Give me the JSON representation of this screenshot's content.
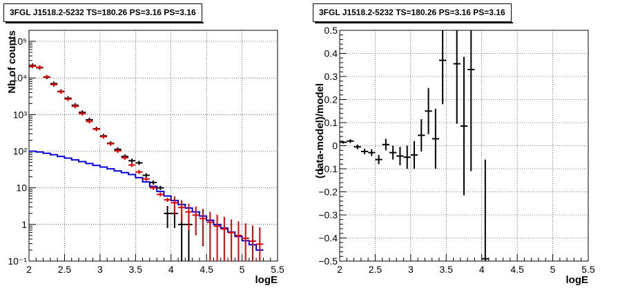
{
  "chart_data": [
    {
      "type": "scatter",
      "title": "3FGL J1518.2-5232 TS=180.26 PS=3.16 PS=3.16",
      "xlabel": "logE",
      "ylabel": "Nb of counts",
      "xlim": [
        2,
        5.5
      ],
      "ylim": [
        0.1,
        200000
      ],
      "yscale": "log",
      "grid": true,
      "xticks": [
        "2",
        "2.5",
        "3",
        "3.5",
        "4",
        "4.5",
        "5",
        "5.5"
      ],
      "yticks": [
        "10⁻¹",
        "1",
        "10",
        "10²",
        "10³",
        "10⁴",
        "10⁵"
      ],
      "colors": {
        "data": "#000000",
        "model_total": "#e00000",
        "model_source": "#0000dd"
      },
      "series": [
        {
          "role": "data",
          "points": [
            [
              2.05,
              22000,
              0
            ],
            [
              2.15,
              19000,
              0
            ],
            [
              2.25,
              10500,
              0
            ],
            [
              2.35,
              7000,
              0
            ],
            [
              2.45,
              4300,
              0
            ],
            [
              2.55,
              2800,
              0
            ],
            [
              2.65,
              1800,
              0
            ],
            [
              2.75,
              1150,
              0
            ],
            [
              2.85,
              720,
              0
            ],
            [
              2.95,
              410,
              0
            ],
            [
              3.05,
              262,
              0
            ],
            [
              3.15,
              165,
              0
            ],
            [
              3.25,
              112,
              0
            ],
            [
              3.35,
              72,
              0
            ],
            [
              3.45,
              55,
              0
            ],
            [
              3.55,
              48,
              0
            ],
            [
              3.65,
              22,
              0
            ],
            [
              3.75,
              14,
              0
            ],
            [
              3.85,
              10,
              0
            ],
            [
              3.95,
              2,
              1.2
            ],
            [
              4.05,
              2,
              1.2
            ],
            [
              4.15,
              1,
              0.9
            ],
            [
              4.25,
              1,
              0.9
            ]
          ]
        },
        {
          "role": "model_total",
          "points": [
            [
              2.05,
              21000,
              0
            ],
            [
              2.15,
              19500,
              0
            ],
            [
              2.25,
              10700,
              0
            ],
            [
              2.35,
              6600,
              0
            ],
            [
              2.45,
              4200,
              0
            ],
            [
              2.55,
              2650,
              0
            ],
            [
              2.65,
              1690,
              0
            ],
            [
              2.75,
              1070,
              0
            ],
            [
              2.85,
              650,
              0
            ],
            [
              2.95,
              400,
              0
            ],
            [
              3.05,
              250,
              0
            ],
            [
              3.15,
              160,
              0
            ],
            [
              3.25,
              102,
              0
            ],
            [
              3.35,
              66,
              0
            ],
            [
              3.45,
              42,
              0
            ],
            [
              3.55,
              27,
              0
            ],
            [
              3.65,
              17.5,
              0
            ],
            [
              3.75,
              10,
              0
            ],
            [
              3.85,
              6.6,
              0
            ],
            [
              3.95,
              4.7,
              0
            ],
            [
              4.05,
              3.9,
              2.0
            ],
            [
              4.15,
              2.9,
              1.7
            ],
            [
              4.25,
              2.2,
              1.5
            ],
            [
              4.35,
              1.8,
              1.3
            ],
            [
              4.45,
              1.45,
              1.2
            ],
            [
              4.55,
              1.15,
              1.08
            ],
            [
              4.65,
              0.9,
              0.95
            ],
            [
              4.75,
              0.75,
              0.87
            ],
            [
              4.85,
              0.6,
              0.77
            ],
            [
              4.95,
              0.5,
              0.71
            ],
            [
              5.05,
              0.42,
              0.65
            ],
            [
              5.15,
              0.35,
              0.59
            ],
            [
              5.25,
              0.29,
              0.54
            ]
          ]
        },
        {
          "role": "model_source",
          "step_x": [
            2.0,
            2.1,
            2.2,
            2.3,
            2.4,
            2.5,
            2.6,
            2.7,
            2.8,
            2.9,
            3.0,
            3.1,
            3.2,
            3.3,
            3.4,
            3.5,
            3.6,
            3.7,
            3.8,
            3.9,
            4.0,
            4.1,
            4.2,
            4.3,
            4.4,
            4.5,
            4.6,
            4.7,
            4.8,
            4.9,
            5.0,
            5.1,
            5.2,
            5.3
          ],
          "step_y": [
            100,
            95,
            88,
            80,
            72,
            65,
            58,
            52,
            46,
            41,
            37,
            33,
            29,
            26,
            23,
            19,
            14.5,
            11,
            8,
            6,
            4.5,
            3.5,
            2.8,
            2.2,
            1.7,
            1.3,
            1.0,
            0.8,
            0.62,
            0.47,
            0.36,
            0.28,
            0.2
          ]
        }
      ]
    },
    {
      "type": "scatter",
      "title": "3FGL J1518.2-5232 TS=180.26 PS=3.16 PS=3.16",
      "xlabel": "logE",
      "ylabel": "(data-model)/model",
      "xlim": [
        2,
        5.5
      ],
      "ylim": [
        -0.5,
        0.5
      ],
      "grid": true,
      "xticks": [
        "2",
        "2.5",
        "3",
        "3.5",
        "4",
        "4.5",
        "5",
        "5.5"
      ],
      "yticks": [
        "−0.5",
        "−0.4",
        "−0.3",
        "−0.2",
        "−0.1",
        "0",
        "0.1",
        "0.2",
        "0.3",
        "0.4",
        "0.5"
      ],
      "colors": {
        "data": "#000000"
      },
      "points": [
        [
          2.05,
          0.015,
          0.006
        ],
        [
          2.15,
          0.02,
          0.008
        ],
        [
          2.25,
          -0.005,
          0.01
        ],
        [
          2.35,
          -0.025,
          0.012
        ],
        [
          2.45,
          -0.03,
          0.015
        ],
        [
          2.55,
          -0.06,
          0.02
        ],
        [
          2.65,
          0.005,
          0.025
        ],
        [
          2.75,
          -0.03,
          0.03
        ],
        [
          2.85,
          -0.045,
          0.04
        ],
        [
          2.95,
          -0.05,
          0.05
        ],
        [
          3.05,
          -0.04,
          0.06
        ],
        [
          3.15,
          0.045,
          0.07
        ],
        [
          3.25,
          0.15,
          0.1
        ],
        [
          3.35,
          0.03,
          0.13
        ],
        [
          3.45,
          0.37,
          0.19
        ],
        [
          3.65,
          0.355,
          0.26
        ],
        [
          3.75,
          0.085,
          0.3
        ],
        [
          3.85,
          0.33,
          0.44
        ],
        [
          4.05,
          -0.49,
          0.43
        ]
      ]
    }
  ]
}
